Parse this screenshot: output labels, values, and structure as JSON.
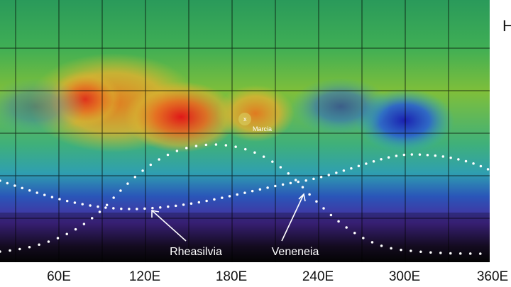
{
  "map": {
    "right_label": "H",
    "longitude_labels": [
      "60E",
      "120E",
      "180E",
      "240E",
      "300E",
      "360E"
    ],
    "features": [
      {
        "marker": "x",
        "label": "Marcia"
      },
      {
        "label": "Rheasilvia"
      },
      {
        "label": "Veneneia"
      }
    ]
  }
}
